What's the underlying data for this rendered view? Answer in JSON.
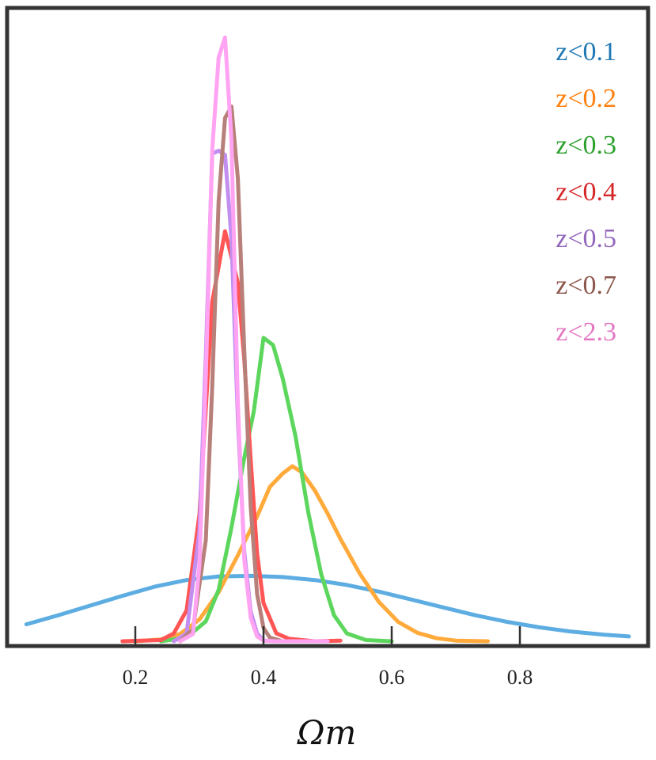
{
  "chart_data": {
    "type": "line",
    "title": "",
    "xlabel": "Ωm",
    "ylabel": "",
    "xlim": [
      0.03,
      0.97
    ],
    "ylim": [
      0,
      1.0
    ],
    "xticks": [
      "0.2",
      "0.4",
      "0.6",
      "0.8"
    ],
    "xtick_values": [
      0.2,
      0.4,
      0.6,
      0.8
    ],
    "grid": false,
    "legend_position": "top-right",
    "series": [
      {
        "name": "z<0.1",
        "color": "#1f77b4",
        "line_color": "#5DADE2",
        "x": [
          0.03,
          0.08,
          0.13,
          0.18,
          0.23,
          0.28,
          0.33,
          0.38,
          0.43,
          0.48,
          0.53,
          0.58,
          0.63,
          0.68,
          0.73,
          0.78,
          0.83,
          0.88,
          0.93,
          0.97
        ],
        "y": [
          0.028,
          0.043,
          0.059,
          0.075,
          0.09,
          0.101,
          0.107,
          0.108,
          0.106,
          0.101,
          0.093,
          0.082,
          0.069,
          0.056,
          0.043,
          0.032,
          0.023,
          0.016,
          0.011,
          0.008
        ]
      },
      {
        "name": "z<0.2",
        "color": "#ff7f0e",
        "line_color": "#FFAA3B",
        "x": [
          0.2,
          0.24,
          0.27,
          0.3,
          0.33,
          0.36,
          0.39,
          0.41,
          0.43,
          0.445,
          0.46,
          0.48,
          0.5,
          0.52,
          0.55,
          0.58,
          0.61,
          0.64,
          0.67,
          0.7,
          0.75
        ],
        "y": [
          0.0,
          0.003,
          0.012,
          0.036,
          0.081,
          0.142,
          0.206,
          0.255,
          0.277,
          0.289,
          0.279,
          0.249,
          0.211,
          0.169,
          0.112,
          0.065,
          0.032,
          0.014,
          0.005,
          0.001,
          0.0
        ]
      },
      {
        "name": "z<0.3",
        "color": "#2ca02c",
        "line_color": "#5CD65C",
        "x": [
          0.24,
          0.28,
          0.31,
          0.33,
          0.35,
          0.37,
          0.385,
          0.4,
          0.415,
          0.43,
          0.45,
          0.47,
          0.49,
          0.51,
          0.53,
          0.56,
          0.6
        ],
        "y": [
          0.0,
          0.006,
          0.033,
          0.085,
          0.188,
          0.303,
          0.38,
          0.501,
          0.489,
          0.434,
          0.338,
          0.212,
          0.111,
          0.043,
          0.013,
          0.002,
          0.0
        ]
      },
      {
        "name": "z<0.4",
        "color": "#d62728",
        "line_color": "#FF5555",
        "x": [
          0.18,
          0.24,
          0.26,
          0.28,
          0.3,
          0.32,
          0.34,
          0.36,
          0.37,
          0.38,
          0.39,
          0.4,
          0.42,
          0.44,
          0.48,
          0.52
        ],
        "y": [
          0.0,
          0.002,
          0.013,
          0.051,
          0.209,
          0.56,
          0.677,
          0.592,
          0.465,
          0.3,
          0.145,
          0.063,
          0.013,
          0.004,
          0.0,
          0.001
        ]
      },
      {
        "name": "z<0.5",
        "color": "#9467bd",
        "line_color": "#C28EF0",
        "x": [
          0.26,
          0.28,
          0.3,
          0.31,
          0.32,
          0.33,
          0.34,
          0.35,
          0.36,
          0.37,
          0.38,
          0.39,
          0.4,
          0.42
        ],
        "y": [
          0.0,
          0.013,
          0.182,
          0.471,
          0.805,
          0.81,
          0.803,
          0.665,
          0.367,
          0.148,
          0.049,
          0.013,
          0.001,
          0.0
        ]
      },
      {
        "name": "z<0.7",
        "color": "#8c564b",
        "line_color": "#B8807A",
        "x": [
          0.27,
          0.29,
          0.31,
          0.32,
          0.33,
          0.34,
          0.35,
          0.36,
          0.37,
          0.38,
          0.39,
          0.4,
          0.41,
          0.43
        ],
        "y": [
          0.0,
          0.02,
          0.167,
          0.421,
          0.727,
          0.864,
          0.883,
          0.764,
          0.48,
          0.222,
          0.078,
          0.022,
          0.006,
          0.0
        ]
      },
      {
        "name": "z<2.3",
        "color": "#e377c2",
        "line_color": "#FFA3F2",
        "x": [
          0.27,
          0.29,
          0.3,
          0.31,
          0.32,
          0.33,
          0.34,
          0.35,
          0.36,
          0.37,
          0.38,
          0.39,
          0.4,
          0.42,
          0.5
        ],
        "y": [
          0.0,
          0.012,
          0.126,
          0.437,
          0.811,
          0.964,
          0.997,
          0.827,
          0.393,
          0.135,
          0.039,
          0.008,
          0.001,
          0.0,
          0.0
        ]
      }
    ]
  }
}
